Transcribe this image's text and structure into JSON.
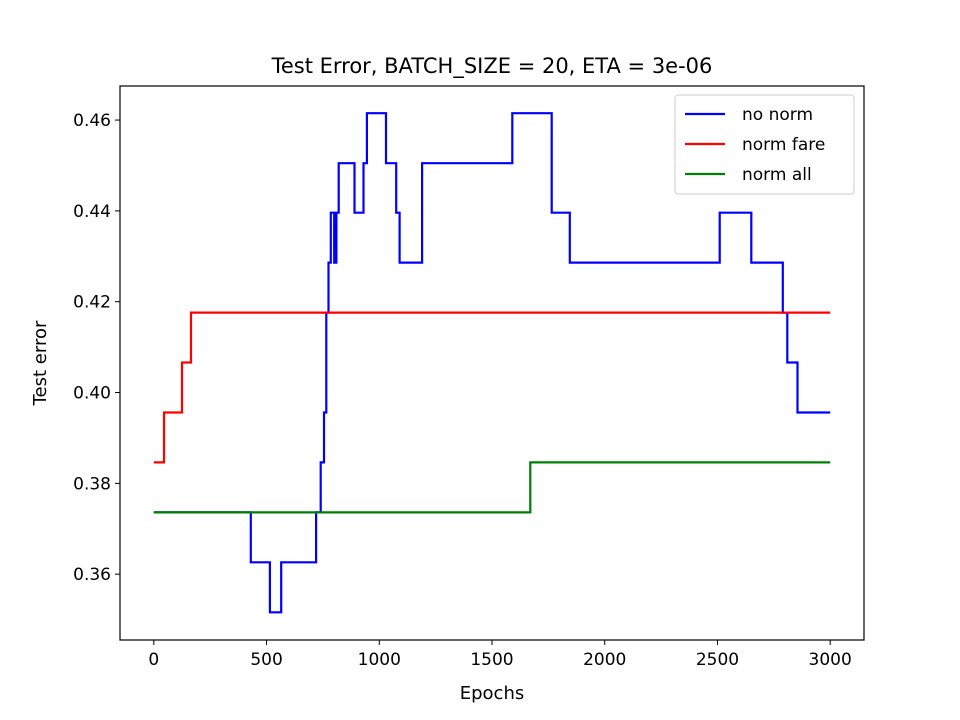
{
  "chart_data": {
    "type": "line",
    "title": "Test Error, BATCH_SIZE = 20, ETA = 3e-06",
    "xlabel": "Epochs",
    "ylabel": "Test error",
    "xlim": [
      -150,
      3150
    ],
    "ylim": [
      0.3455,
      0.4675
    ],
    "xticks": [
      0,
      500,
      1000,
      1500,
      2000,
      2500,
      3000
    ],
    "yticks": [
      0.36,
      0.38,
      0.4,
      0.42,
      0.44,
      0.46
    ],
    "xtick_labels": [
      "0",
      "500",
      "1000",
      "1500",
      "2000",
      "2500",
      "3000"
    ],
    "ytick_labels": [
      "0.36",
      "0.38",
      "0.40",
      "0.42",
      "0.44",
      "0.46"
    ],
    "grid": false,
    "legend_position": "top-right",
    "step_style": "post",
    "series": [
      {
        "name": "no norm",
        "color": "#0000ff",
        "x": [
          0,
          430,
          515,
          565,
          720,
          740,
          755,
          765,
          775,
          785,
          800,
          810,
          820,
          840,
          890,
          930,
          945,
          1030,
          1075,
          1090,
          1175,
          1190,
          1590,
          1765,
          1845,
          2510,
          2650,
          2790,
          2810,
          2855,
          3000
        ],
        "y": [
          0.3736,
          0.3626,
          0.3516,
          0.3626,
          0.3736,
          0.3846,
          0.3956,
          0.4176,
          0.4286,
          0.4396,
          0.4286,
          0.4396,
          0.4505,
          0.4505,
          0.4396,
          0.4505,
          0.4615,
          0.4505,
          0.4396,
          0.4286,
          0.4286,
          0.4505,
          0.4615,
          0.4396,
          0.4286,
          0.4396,
          0.4286,
          0.4176,
          0.4066,
          0.3956,
          0.3956
        ]
      },
      {
        "name": "norm fare",
        "color": "#ff0000",
        "x": [
          0,
          45,
          125,
          165,
          3000
        ],
        "y": [
          0.3846,
          0.3956,
          0.4066,
          0.4176,
          0.4176
        ]
      },
      {
        "name": "norm all",
        "color": "#008000",
        "x": [
          0,
          1670,
          3000
        ],
        "y": [
          0.3736,
          0.3846,
          0.3846
        ]
      }
    ]
  }
}
